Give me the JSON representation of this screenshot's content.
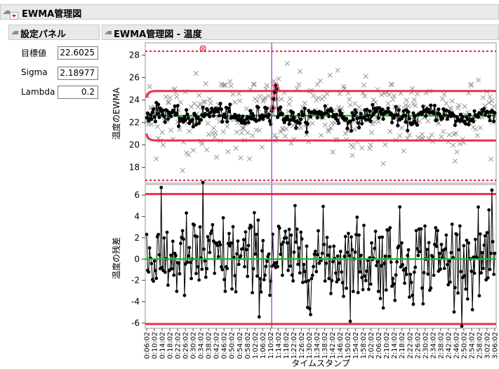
{
  "report": {
    "title": "EWMA管理図"
  },
  "settings_panel": {
    "title": "設定パネル",
    "params": [
      {
        "label": "目標値",
        "value": "22.6025"
      },
      {
        "label": "Sigma",
        "value": "2.18977"
      },
      {
        "label": "Lambda",
        "value": "0.2"
      }
    ]
  },
  "chart_panel": {
    "title": "EWMA管理図 - 温度"
  },
  "colors": {
    "limit": "#e8304a",
    "center": "#22bb22",
    "cursor": "#9b30c0",
    "points": "#000000",
    "raw": "#8c8c8c"
  },
  "chart_data": [
    {
      "type": "line",
      "ylabel": "温度のEWMA",
      "ylim": [
        16.6,
        29.1
      ],
      "yticks": [
        18,
        20,
        22,
        24,
        26,
        28
      ],
      "center": 22.6025,
      "ucl": 24.8,
      "lcl": 20.4,
      "ucl_3s": 28.35,
      "lcl_3s": 16.85,
      "n_points": 360,
      "ewma_sd": 0.38,
      "raw_sd": 2.19,
      "cursor_index": 130,
      "cursor_segment": [
        23.3,
        24.1,
        24.7,
        25.3,
        25.0
      ],
      "out_of_range_index": 58,
      "out_of_range_value": 28.6
    },
    {
      "type": "line",
      "ylabel": "温度の残差",
      "xlabel": "タイムスタンプ",
      "ylim": [
        -6.5,
        7.0
      ],
      "yticks": [
        -6,
        -4,
        -2,
        0,
        2,
        4,
        6
      ],
      "center": 0,
      "ucl": 6.1,
      "lcl": -6.1,
      "n_points": 360,
      "spike_index": 58,
      "spike_value": 7.2,
      "x_tick_labels": [
        "0:06:02",
        "0:10:02",
        "0:14:02",
        "0:18:02",
        "0:22:02",
        "0:26:02",
        "0:30:02",
        "0:34:02",
        "0:38:02",
        "0:42:02",
        "0:46:02",
        "0:50:02",
        "0:54:02",
        "0:58:02",
        "1:02:02",
        "1:06:02",
        "1:10:02",
        "1:14:02",
        "1:18:02",
        "1:22:02",
        "1:26:02",
        "1:30:02",
        "1:34:02",
        "1:38:02",
        "1:42:02",
        "1:46:02",
        "1:50:02",
        "1:54:02",
        "1:58:02",
        "2:02:02",
        "2:06:02",
        "2:10:02",
        "2:14:02",
        "2:18:02",
        "2:22:02",
        "2:26:02",
        "2:30:02",
        "2:34:02",
        "2:38:02",
        "2:42:02",
        "2:46:02",
        "2:50:02",
        "2:54:02",
        "2:58:02",
        "3:02:02",
        "3:06:02"
      ]
    }
  ]
}
